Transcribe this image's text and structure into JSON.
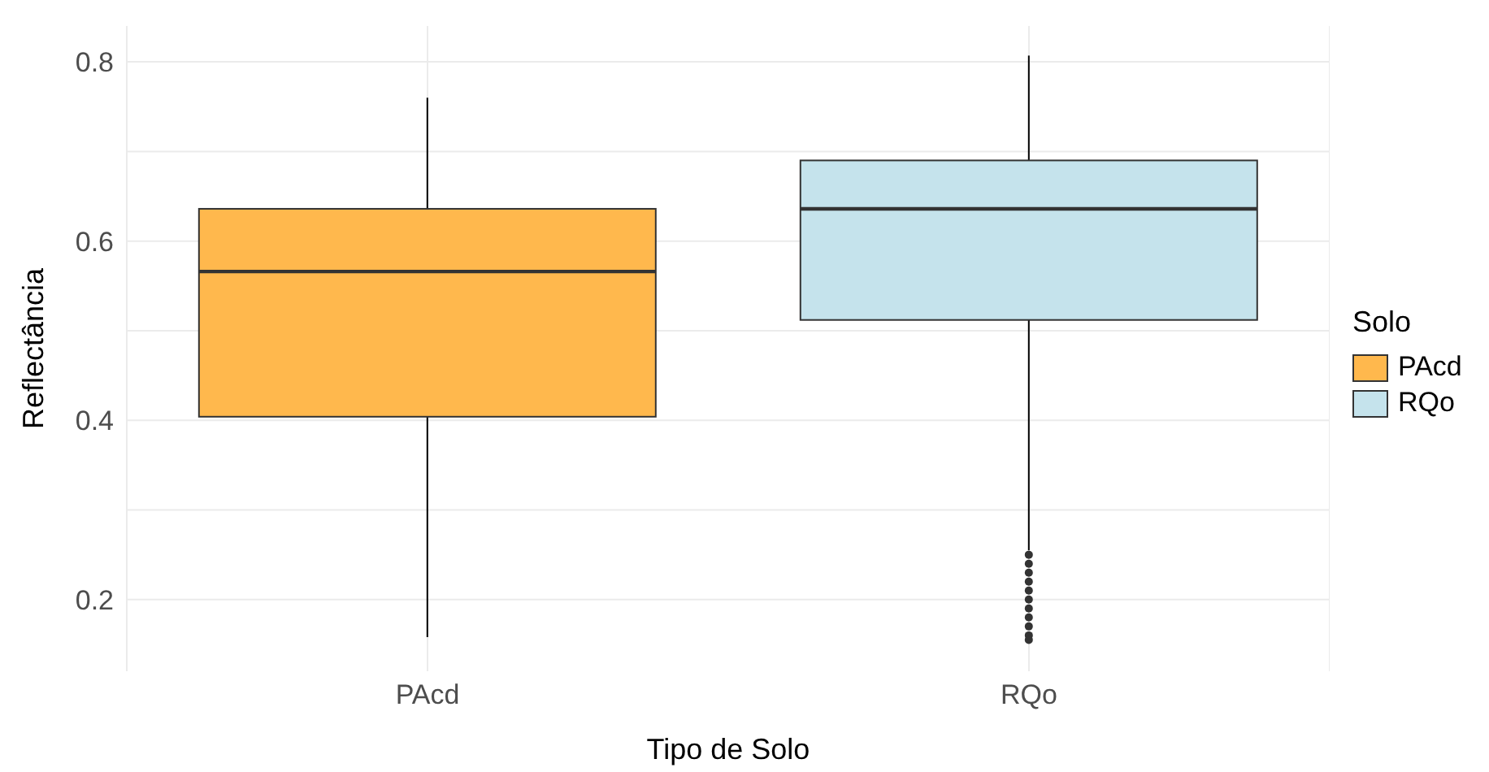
{
  "chart_data": {
    "type": "box",
    "categories": [
      "PAcd",
      "RQo"
    ],
    "xlabel": "Tipo de Solo",
    "ylabel": "Reflectância",
    "legend_title": "Solo",
    "legend": "right",
    "grid": true,
    "ylim": [
      0.12,
      0.84
    ],
    "yticks": [
      0.2,
      {
        "value": 0.3,
        "label": null
      },
      0.4,
      {
        "value": 0.5,
        "label": null
      },
      0.6,
      {
        "value": 0.7,
        "label": null
      },
      0.8
    ],
    "series": [
      {
        "name": "PAcd",
        "color": "#ffb84d",
        "boxes": [
          {
            "low": 0.158,
            "q1": 0.404,
            "median": 0.566,
            "q3": 0.636,
            "high": 0.76
          },
          null
        ]
      },
      {
        "name": "RQo",
        "color": "#c5e3ec",
        "boxes": [
          null,
          {
            "low": 0.255,
            "q1": 0.512,
            "median": 0.636,
            "q3": 0.69,
            "high": 0.807,
            "outliers": [
              0.25,
              0.24,
              0.23,
              0.22,
              0.21,
              0.2,
              0.19,
              0.18,
              0.17,
              0.16,
              0.155
            ]
          }
        ]
      }
    ]
  }
}
